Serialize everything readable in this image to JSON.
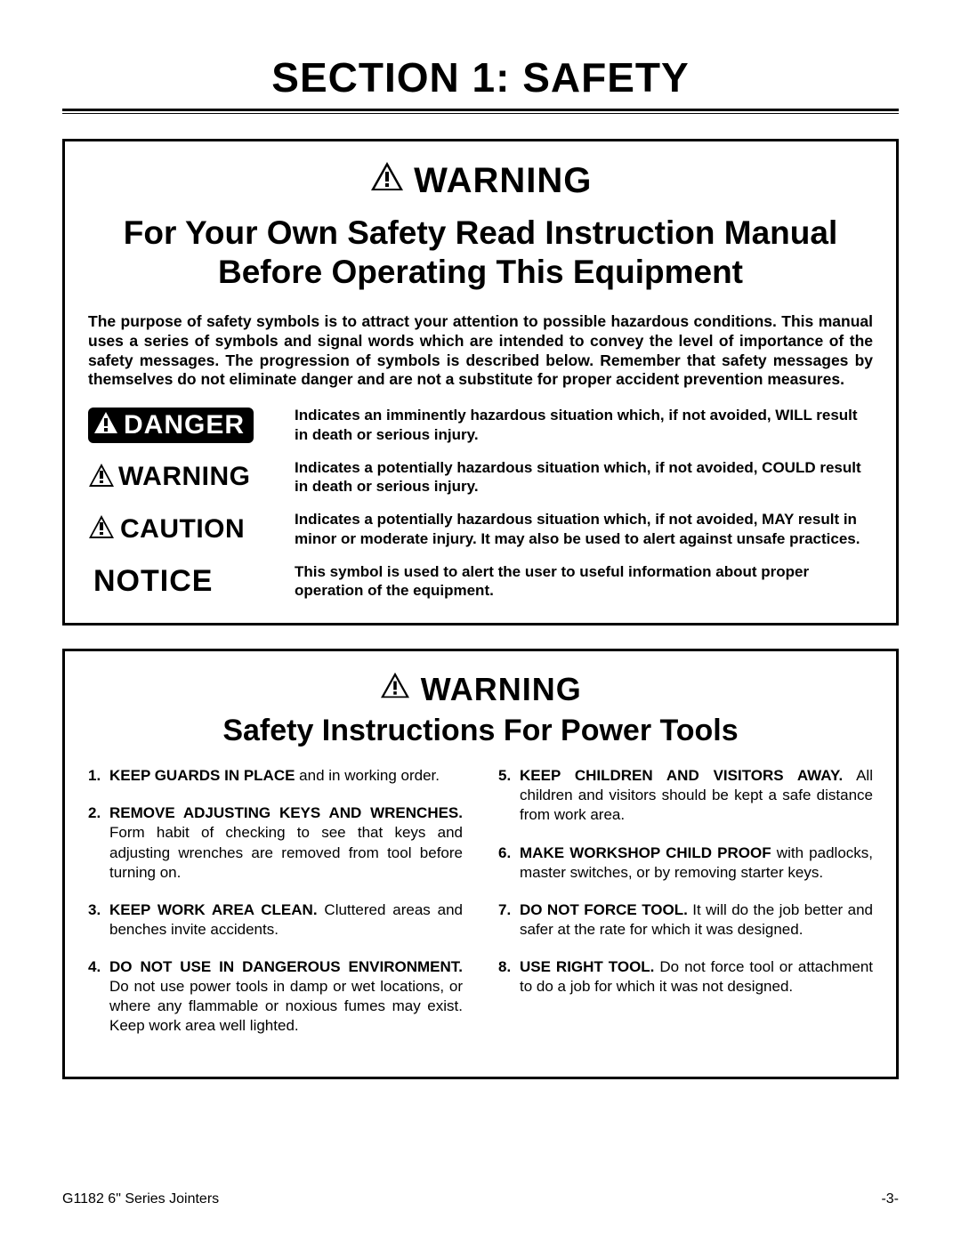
{
  "section_title": "SECTION 1: SAFETY",
  "box1": {
    "warning_label": "WARNING",
    "subhead": "For Your Own Safety Read Instruction Manual Before Operating This Equipment",
    "intro": "The purpose of safety symbols is to attract your attention to possible hazardous conditions. This manual uses a series of symbols and signal words which are intended to convey the level of importance of the safety messages. The progression of symbols is described below. Remember that safety messages by themselves do not eliminate danger and are not a substitute for proper accident prevention measures.",
    "defs": {
      "danger": {
        "label": "DANGER",
        "text": "Indicates an imminently hazardous situation which, if not avoided, WILL result in death or serious injury."
      },
      "warning": {
        "label": "WARNING",
        "text": "Indicates a potentially hazardous situation which, if not avoided, COULD result in death or serious injury."
      },
      "caution": {
        "label": "CAUTION",
        "text": "Indicates a potentially hazardous situation which, if not avoided, MAY result in minor or moderate injury. It may also be used to alert against unsafe practices."
      },
      "notice": {
        "label": "NOTICE",
        "text": "This symbol is used to alert the user to useful information about proper operation of the equipment."
      }
    }
  },
  "box2": {
    "warning_label": "WARNING",
    "subhead": "Safety Instructions For Power Tools",
    "left": [
      {
        "n": "1.",
        "bold": "KEEP GUARDS IN PLACE",
        "rest": " and in working order."
      },
      {
        "n": "2.",
        "bold": "REMOVE ADJUSTING KEYS AND WRENCHES.",
        "rest": " Form habit of checking to see that keys and adjusting wrenches are removed from tool before turning on."
      },
      {
        "n": "3.",
        "bold": "KEEP WORK AREA CLEAN.",
        "rest": " Cluttered areas and benches invite accidents."
      },
      {
        "n": "4.",
        "bold": "DO NOT USE IN DANGEROUS ENVIRONMENT.",
        "rest": " Do not use power tools in damp or wet locations, or where any flammable or noxious fumes may exist. Keep work area well lighted."
      }
    ],
    "right": [
      {
        "n": "5.",
        "bold": "KEEP CHILDREN AND VISITORS AWAY.",
        "rest": " All children and visitors should be kept a safe distance from work area."
      },
      {
        "n": "6.",
        "bold": "MAKE WORKSHOP CHILD PROOF",
        "rest": " with padlocks, master switches, or by removing starter keys."
      },
      {
        "n": "7.",
        "bold": "DO NOT FORCE TOOL.",
        "rest": " It will do the job better and safer at the rate for which it was designed."
      },
      {
        "n": "8.",
        "bold": "USE RIGHT TOOL.",
        "rest": " Do not force tool or attachment to do a job for which it was not designed."
      }
    ]
  },
  "footer": {
    "left": "G1182 6\" Series Jointers",
    "right": "-3-"
  },
  "colors": {
    "black": "#000000",
    "white": "#ffffff"
  }
}
